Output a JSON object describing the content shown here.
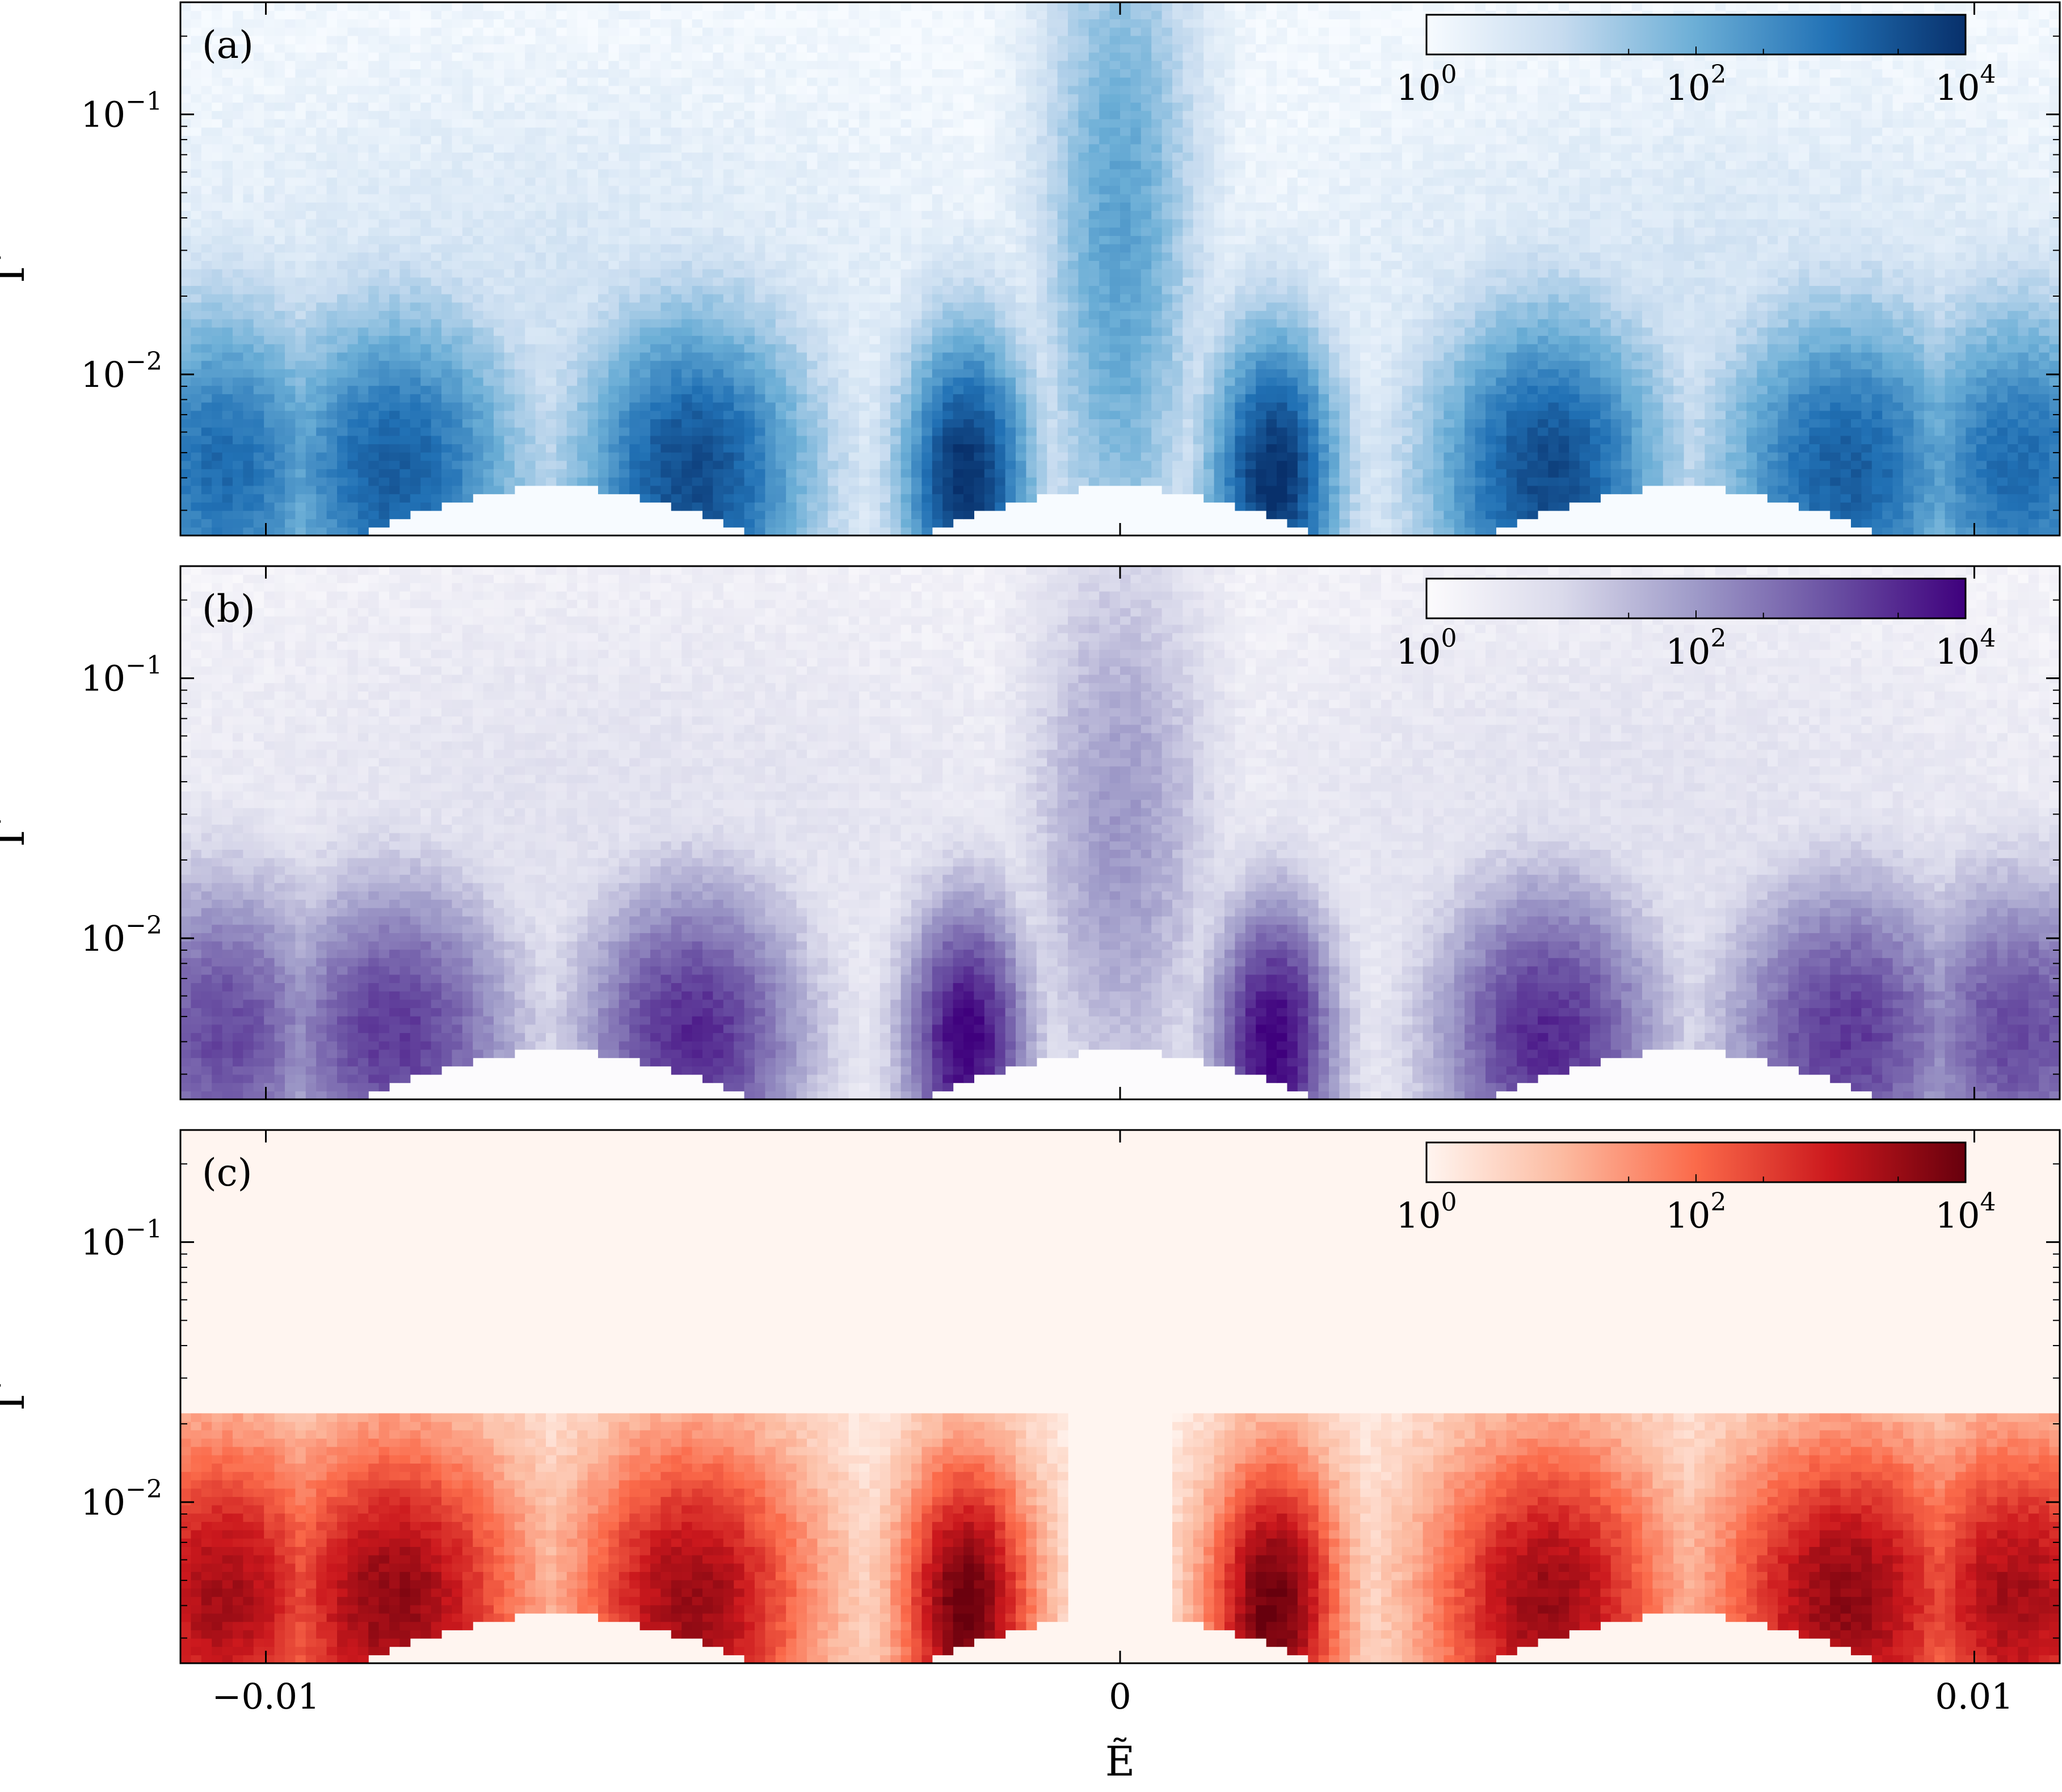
{
  "chart_data": [
    {
      "type": "heatmap",
      "panel_label": "(a)",
      "xlabel": "Ẽ",
      "ylabel": "Γ",
      "yscale": "log",
      "xlim": [
        -0.011,
        0.011
      ],
      "ylim": [
        0.0024,
        0.27
      ],
      "yticks": [
        {
          "value": 0.1,
          "base": "10",
          "exp": "−1"
        },
        {
          "value": 0.01,
          "base": "10",
          "exp": "−2"
        }
      ],
      "colorbar": {
        "scale": "log",
        "range": [
          1,
          10000
        ],
        "ticks": [
          {
            "base": "10",
            "exp": "0"
          },
          {
            "base": "10",
            "exp": "2"
          },
          {
            "base": "10",
            "exp": "4"
          }
        ],
        "colors": [
          "#f7fbff",
          "#c6dbef",
          "#6baed6",
          "#2171b5",
          "#08306b"
        ]
      },
      "background": "#f7fbff",
      "bands": [
        {
          "x": -0.0105,
          "y": 0.0043,
          "w": 0.0011,
          "h": 0.5,
          "level": 3.1
        },
        {
          "x": -0.0085,
          "y": 0.0042,
          "w": 0.0012,
          "h": 0.5,
          "level": 3.3
        },
        {
          "x": -0.005,
          "y": 0.0041,
          "w": 0.0011,
          "h": 0.5,
          "level": 3.6
        },
        {
          "x": -0.0018,
          "y": 0.004,
          "w": 0.0006,
          "h": 0.45,
          "level": 4.0
        },
        {
          "x": 0.0018,
          "y": 0.004,
          "w": 0.0006,
          "h": 0.45,
          "level": 4.0
        },
        {
          "x": 0.005,
          "y": 0.0041,
          "w": 0.0011,
          "h": 0.5,
          "level": 3.6
        },
        {
          "x": 0.0085,
          "y": 0.0042,
          "w": 0.0012,
          "h": 0.5,
          "level": 3.3
        },
        {
          "x": 0.0105,
          "y": 0.0043,
          "w": 0.0011,
          "h": 0.5,
          "level": 3.1
        },
        {
          "x": 0,
          "y": 0.03,
          "w": 0.0007,
          "h": 1.1,
          "level": 2.2
        },
        {
          "x": -0.007,
          "y": 0.012,
          "w": 0.004,
          "h": 0.7,
          "level": 0.8
        },
        {
          "x": 0.007,
          "y": 0.012,
          "w": 0.004,
          "h": 0.7,
          "level": 0.8
        }
      ]
    },
    {
      "type": "heatmap",
      "panel_label": "(b)",
      "xlabel": "Ẽ",
      "ylabel": "Γ",
      "yscale": "log",
      "xlim": [
        -0.011,
        0.011
      ],
      "ylim": [
        0.0024,
        0.27
      ],
      "yticks": [
        {
          "value": 0.1,
          "base": "10",
          "exp": "−1"
        },
        {
          "value": 0.01,
          "base": "10",
          "exp": "−2"
        }
      ],
      "colorbar": {
        "scale": "log",
        "range": [
          1,
          10000
        ],
        "ticks": [
          {
            "base": "10",
            "exp": "0"
          },
          {
            "base": "10",
            "exp": "2"
          },
          {
            "base": "10",
            "exp": "4"
          }
        ],
        "colors": [
          "#fcfbfd",
          "#dadaeb",
          "#9e9ac8",
          "#6a51a3",
          "#3f007d"
        ]
      },
      "background": "#fcfbfd",
      "bands": [
        {
          "x": -0.0105,
          "y": 0.0043,
          "w": 0.0011,
          "h": 0.5,
          "level": 3.1
        },
        {
          "x": -0.0085,
          "y": 0.0042,
          "w": 0.0012,
          "h": 0.5,
          "level": 3.3
        },
        {
          "x": -0.005,
          "y": 0.0041,
          "w": 0.0011,
          "h": 0.5,
          "level": 3.5
        },
        {
          "x": -0.0018,
          "y": 0.004,
          "w": 0.0006,
          "h": 0.45,
          "level": 4.0
        },
        {
          "x": 0.0018,
          "y": 0.004,
          "w": 0.0006,
          "h": 0.45,
          "level": 4.0
        },
        {
          "x": 0.005,
          "y": 0.0041,
          "w": 0.0011,
          "h": 0.5,
          "level": 3.5
        },
        {
          "x": 0.0085,
          "y": 0.0042,
          "w": 0.0012,
          "h": 0.5,
          "level": 3.3
        },
        {
          "x": 0.0105,
          "y": 0.0043,
          "w": 0.0011,
          "h": 0.5,
          "level": 3.1
        },
        {
          "x": 0,
          "y": 0.025,
          "w": 0.0009,
          "h": 0.9,
          "level": 2.0
        },
        {
          "x": -0.006,
          "y": 0.02,
          "w": 0.005,
          "h": 0.9,
          "level": 0.8
        },
        {
          "x": 0.006,
          "y": 0.02,
          "w": 0.005,
          "h": 0.9,
          "level": 0.8
        }
      ]
    },
    {
      "type": "heatmap",
      "panel_label": "(c)",
      "xlabel": "Ẽ",
      "ylabel": "Γ",
      "yscale": "log",
      "xlim": [
        -0.011,
        0.011
      ],
      "ylim": [
        0.0024,
        0.27
      ],
      "xticks": [
        {
          "value": -0.01,
          "label": "−0.01"
        },
        {
          "value": 0,
          "label": "0"
        },
        {
          "value": 0.01,
          "label": "0.01"
        }
      ],
      "yticks": [
        {
          "value": 0.1,
          "base": "10",
          "exp": "−1"
        },
        {
          "value": 0.01,
          "base": "10",
          "exp": "−2"
        }
      ],
      "colorbar": {
        "scale": "log",
        "range": [
          1,
          10000
        ],
        "ticks": [
          {
            "base": "10",
            "exp": "0"
          },
          {
            "base": "10",
            "exp": "2"
          },
          {
            "base": "10",
            "exp": "4"
          }
        ],
        "colors": [
          "#fff5f0",
          "#fcbba1",
          "#fb6a4a",
          "#cb181d",
          "#67000d"
        ]
      },
      "background": "#fff5f0",
      "bands": [
        {
          "x": -0.0105,
          "y": 0.0043,
          "w": 0.0011,
          "h": 0.5,
          "level": 3.4
        },
        {
          "x": -0.0085,
          "y": 0.0042,
          "w": 0.0012,
          "h": 0.5,
          "level": 3.6
        },
        {
          "x": -0.005,
          "y": 0.0041,
          "w": 0.0011,
          "h": 0.5,
          "level": 3.5
        },
        {
          "x": -0.0018,
          "y": 0.004,
          "w": 0.0006,
          "h": 0.45,
          "level": 4.0
        },
        {
          "x": 0.0018,
          "y": 0.004,
          "w": 0.0006,
          "h": 0.45,
          "level": 4.0
        },
        {
          "x": 0.005,
          "y": 0.0041,
          "w": 0.0011,
          "h": 0.5,
          "level": 3.5
        },
        {
          "x": 0.0085,
          "y": 0.0042,
          "w": 0.0012,
          "h": 0.5,
          "level": 3.6
        },
        {
          "x": 0.0105,
          "y": 0.0043,
          "w": 0.0011,
          "h": 0.5,
          "level": 3.4
        }
      ]
    }
  ]
}
